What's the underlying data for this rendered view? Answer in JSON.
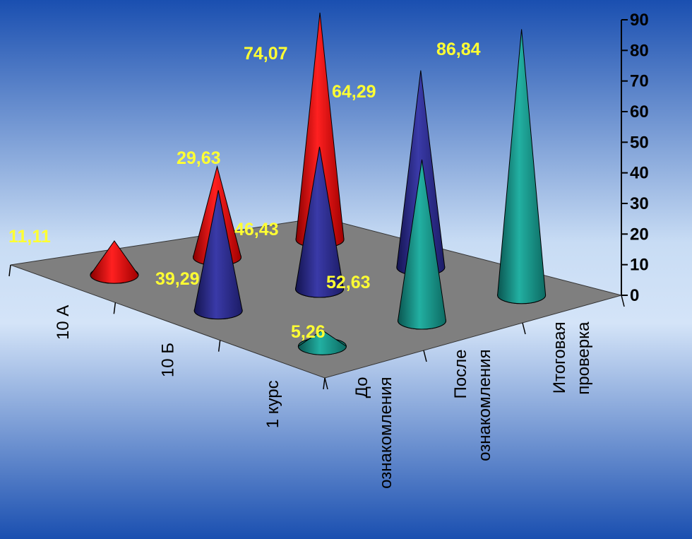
{
  "chart_data": {
    "type": "bar",
    "style": "3d-cone",
    "title": "",
    "categories": [
      "До ознакомления",
      "После ознакомления",
      "Итоговая проверка"
    ],
    "series": [
      {
        "name": "10 А",
        "values": [
          11.11,
          29.63,
          74.07
        ],
        "color": "#ff0000"
      },
      {
        "name": "10 Б",
        "values": [
          39.29,
          46.43,
          64.29
        ],
        "color": "#2a2a8c"
      },
      {
        "name": "1 курс",
        "values": [
          5.26,
          52.63,
          86.84
        ],
        "color": "#1a9a8e"
      }
    ],
    "data_labels": {
      "10 А": [
        "11,11",
        "29,63",
        "74,07"
      ],
      "10 Б": [
        "39,29",
        "46,43",
        "64,29"
      ],
      "1 курс": [
        "5,26",
        "52,63",
        "86,84"
      ]
    },
    "category_axis_labels": [
      [
        "До",
        "ознакомления"
      ],
      [
        "После",
        "ознакомления"
      ],
      [
        "Итоговая",
        "проверка"
      ]
    ],
    "yticks": [
      "0",
      "10",
      "20",
      "30",
      "40",
      "50",
      "60",
      "70",
      "80",
      "90"
    ],
    "ylim": [
      0,
      90
    ],
    "grid": false,
    "colors": {
      "bg_top": "#1a4fb0",
      "bg_mid": "#c8dcf4",
      "bg_bottom": "#1a4fb0",
      "floor": "#7f7f7f",
      "label": "#ffff33"
    }
  }
}
